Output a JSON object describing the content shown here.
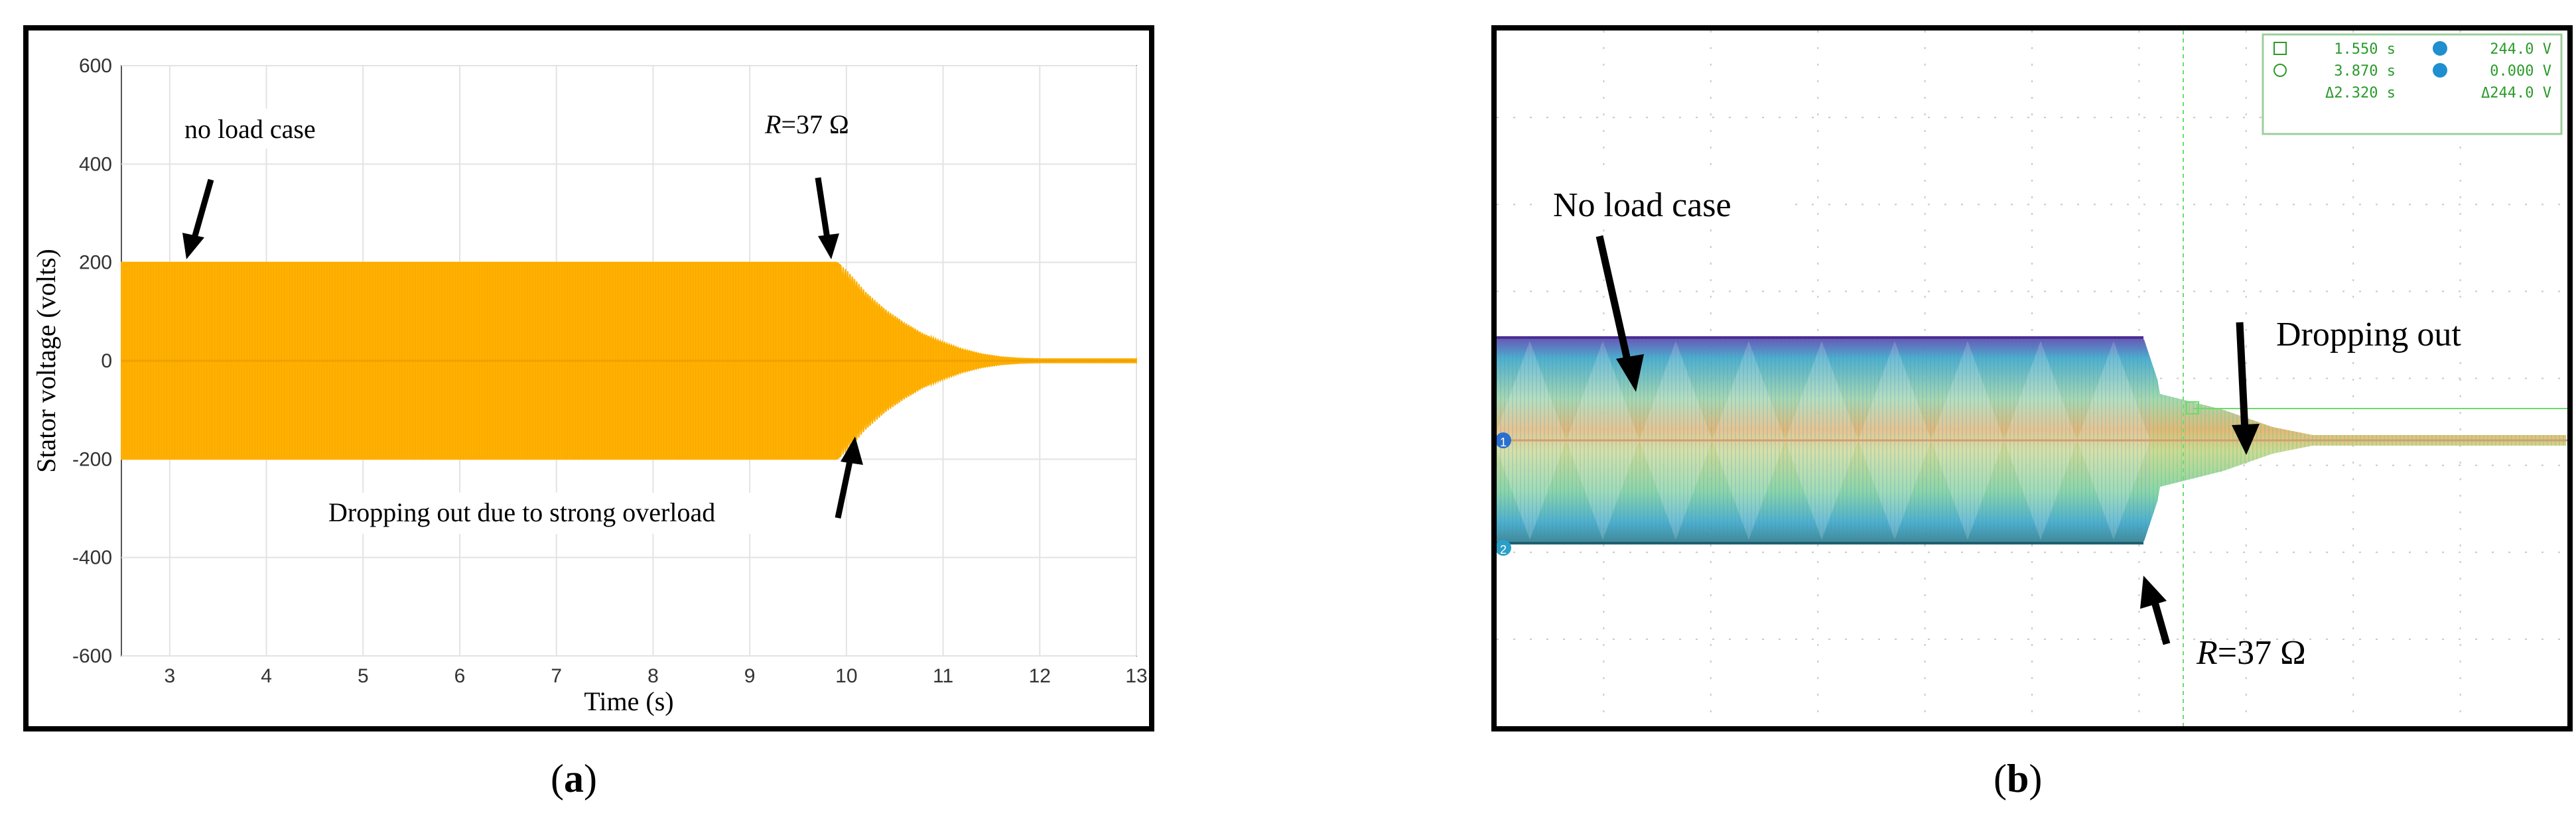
{
  "chart_data": [
    {
      "panel": "a",
      "type": "line",
      "xlabel": "Time (s)",
      "ylabel": "Stator voltage (volts)",
      "xlim": [
        2.5,
        13
      ],
      "ylim": [
        -600,
        600
      ],
      "xticks": [
        3,
        4,
        5,
        6,
        7,
        8,
        9,
        10,
        11,
        12,
        13
      ],
      "yticks": [
        600,
        400,
        200,
        0,
        -200,
        -400,
        -600
      ],
      "grid": true,
      "series": [
        {
          "color": "#ffb000",
          "envelope_x": [
            2.5,
            3,
            4,
            5,
            6,
            7,
            8,
            9,
            9.9,
            10.0,
            10.2,
            10.4,
            10.6,
            10.8,
            11.0,
            11.2,
            11.4,
            11.6,
            11.8,
            12.0,
            12.5,
            13.0
          ],
          "envelope_amplitude": [
            200,
            200,
            200,
            200,
            200,
            200,
            200,
            200,
            200,
            185,
            140,
            105,
            78,
            55,
            38,
            24,
            14,
            8,
            5,
            4,
            4,
            4
          ]
        }
      ],
      "annotations": [
        {
          "text": "no load case",
          "x": 3.0,
          "y": 200
        },
        {
          "text_italic": "R",
          "text": "=37 Ω",
          "x": 9.95,
          "y": 200
        },
        {
          "text": "Dropping out due to strong overload",
          "x": 10.25,
          "y": -190
        }
      ]
    },
    {
      "panel": "b",
      "type": "line",
      "xlabel": "",
      "ylabel": "",
      "grid": true,
      "readout": {
        "row1_time": "1.550 s",
        "row1_volt": "244.0 V",
        "row2_time": "3.870 s",
        "row2_volt": "0.000 V",
        "row3_time": "Δ2.320 s",
        "row3_volt": "Δ244.0 V"
      },
      "annotations": [
        {
          "text": "No load case"
        },
        {
          "text": "Dropping out"
        },
        {
          "text_italic": "R",
          "text": "=37 Ω"
        }
      ]
    }
  ],
  "captions": {
    "a": "a",
    "b": "b"
  },
  "channel_markers": {
    "ch1": "1",
    "ch2": "2"
  }
}
